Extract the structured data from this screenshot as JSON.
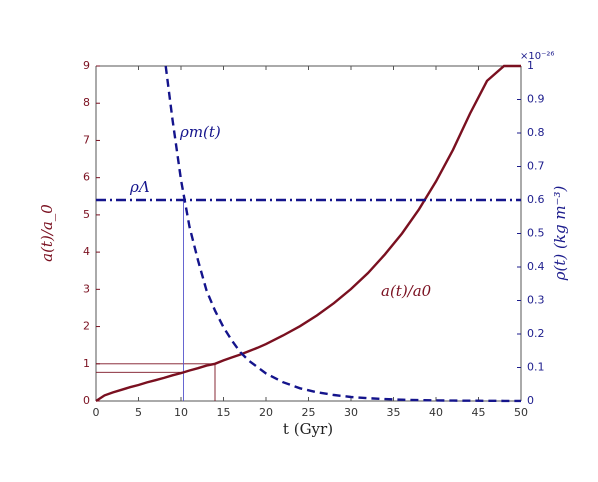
{
  "chart_data": {
    "type": "line",
    "xlabel": "t (Gyr)",
    "ylabel_left": "a(t)/a_0",
    "ylabel_right": "ρ(t) (kg m⁻³)",
    "right_axis_multiplier": "×10⁻²⁶",
    "xlim": [
      0,
      50
    ],
    "ylim_left": [
      0,
      9
    ],
    "ylim_right": [
      0,
      1
    ],
    "x_ticks": [
      0,
      5,
      10,
      15,
      20,
      25,
      30,
      35,
      40,
      45,
      50
    ],
    "y_ticks_left": [
      0,
      1,
      2,
      3,
      4,
      5,
      6,
      7,
      8,
      9
    ],
    "y_ticks_right": [
      0,
      0.1,
      0.2,
      0.3,
      0.4,
      0.5,
      0.6,
      0.7,
      0.8,
      0.9,
      1
    ],
    "grid": false,
    "colors": {
      "scale": "#7a1020",
      "density": "#14148c"
    },
    "series": [
      {
        "name": "a(t)/a_0",
        "axis": "left",
        "style": "solid",
        "x": [
          0,
          1,
          2,
          3,
          4,
          5,
          6,
          7,
          8,
          9,
          10,
          11,
          12,
          13,
          14,
          15,
          16,
          17,
          18,
          19,
          20,
          22,
          24,
          26,
          28,
          30,
          32,
          34,
          36,
          38,
          40,
          42,
          44,
          46,
          48,
          50
        ],
        "values": [
          0,
          0.15,
          0.23,
          0.3,
          0.37,
          0.43,
          0.5,
          0.56,
          0.62,
          0.69,
          0.75,
          0.82,
          0.88,
          0.95,
          1.0,
          1.09,
          1.17,
          1.25,
          1.34,
          1.43,
          1.53,
          1.76,
          2.01,
          2.3,
          2.63,
          3.01,
          3.44,
          3.94,
          4.5,
          5.15,
          5.9,
          6.75,
          7.72,
          8.6,
          9.0,
          9.0
        ]
      },
      {
        "name": "ρ_m(t)",
        "axis": "right",
        "style": "dashed",
        "x": [
          8.2,
          9,
          10,
          11,
          12,
          13,
          14,
          15,
          16,
          17,
          18,
          20,
          22,
          24,
          26,
          28,
          30,
          32,
          34,
          36,
          38,
          40,
          42,
          44,
          46,
          48,
          50
        ],
        "values": [
          1.0,
          0.84,
          0.66,
          0.52,
          0.42,
          0.33,
          0.27,
          0.22,
          0.18,
          0.145,
          0.12,
          0.082,
          0.056,
          0.038,
          0.026,
          0.018,
          0.012,
          0.0085,
          0.0058,
          0.004,
          0.0028,
          0.0019,
          0.0013,
          0.0009,
          0.0006,
          0.0004,
          0.0003
        ]
      },
      {
        "name": "ρ_Λ",
        "axis": "right",
        "style": "dashdot",
        "x": [
          0,
          50
        ],
        "values": [
          0.6,
          0.6
        ]
      }
    ],
    "reference_lines": [
      {
        "axis": "left",
        "y": 1.0,
        "x_end": 14.0
      },
      {
        "axis": "left",
        "y": 0.77,
        "x_end": 10.3
      },
      {
        "axis": "x",
        "x": 14.0,
        "y_end": 1.0,
        "scale": "left"
      },
      {
        "axis": "x",
        "x": 10.3,
        "y_end": 0.6,
        "scale": "right"
      }
    ],
    "annotations": {
      "rho_m": "ρm(t)",
      "rho_lambda": "ρΛ",
      "a_curve": "a(t)/a0"
    }
  }
}
